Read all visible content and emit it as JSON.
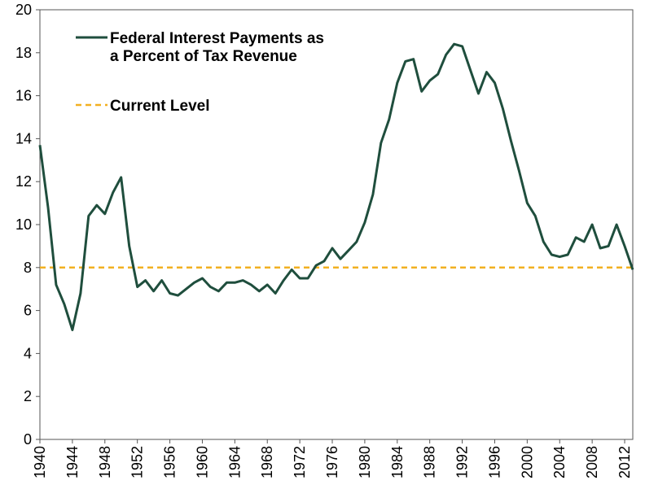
{
  "chart_data": {
    "type": "line",
    "title": "",
    "xlabel": "",
    "ylabel": "",
    "xlim": [
      1940,
      2013
    ],
    "ylim": [
      0,
      20
    ],
    "y_ticks": [
      0,
      2,
      4,
      6,
      8,
      10,
      12,
      14,
      16,
      18,
      20
    ],
    "x_ticks": [
      1940,
      1944,
      1948,
      1952,
      1956,
      1960,
      1964,
      1968,
      1972,
      1976,
      1980,
      1984,
      1988,
      1992,
      1996,
      2000,
      2004,
      2008,
      2012
    ],
    "grid": false,
    "legend_position": "top-left",
    "series": [
      {
        "name": "Federal Interest Payments as a Percent of Tax Revenue",
        "legend_lines": [
          "Federal Interest Payments as",
          "a Percent of Tax Revenue"
        ],
        "color": "#1f4e3d",
        "style": "solid",
        "x": [
          1940,
          1941,
          1942,
          1943,
          1944,
          1945,
          1946,
          1947,
          1948,
          1949,
          1950,
          1951,
          1952,
          1953,
          1954,
          1955,
          1956,
          1957,
          1958,
          1959,
          1960,
          1961,
          1962,
          1963,
          1964,
          1965,
          1966,
          1967,
          1968,
          1969,
          1970,
          1971,
          1972,
          1973,
          1974,
          1975,
          1976,
          1977,
          1978,
          1979,
          1980,
          1981,
          1982,
          1983,
          1984,
          1985,
          1986,
          1987,
          1988,
          1989,
          1990,
          1991,
          1992,
          1993,
          1994,
          1995,
          1996,
          1997,
          1998,
          1999,
          2000,
          2001,
          2002,
          2003,
          2004,
          2005,
          2006,
          2007,
          2008,
          2009,
          2010,
          2011,
          2012,
          2013
        ],
        "y": [
          13.7,
          10.8,
          7.2,
          6.3,
          5.1,
          6.8,
          10.4,
          10.9,
          10.5,
          11.5,
          12.2,
          9.0,
          7.1,
          7.4,
          6.9,
          7.4,
          6.8,
          6.7,
          7.0,
          7.3,
          7.5,
          7.1,
          6.9,
          7.3,
          7.3,
          7.4,
          7.2,
          6.9,
          7.2,
          6.8,
          7.4,
          7.9,
          7.5,
          7.5,
          8.1,
          8.3,
          8.9,
          8.4,
          8.8,
          9.2,
          10.1,
          11.4,
          13.8,
          14.9,
          16.6,
          17.6,
          17.7,
          16.2,
          16.7,
          17.0,
          17.9,
          18.4,
          18.3,
          17.2,
          16.1,
          17.1,
          16.6,
          15.4,
          13.9,
          12.5,
          11.0,
          10.4,
          9.2,
          8.6,
          8.5,
          8.6,
          9.4,
          9.2,
          10.0,
          8.9,
          9.0,
          10.0,
          9.0,
          7.9
        ]
      },
      {
        "name": "Current Level",
        "color": "#f2b021",
        "style": "dashed",
        "value": 8.0
      }
    ]
  }
}
